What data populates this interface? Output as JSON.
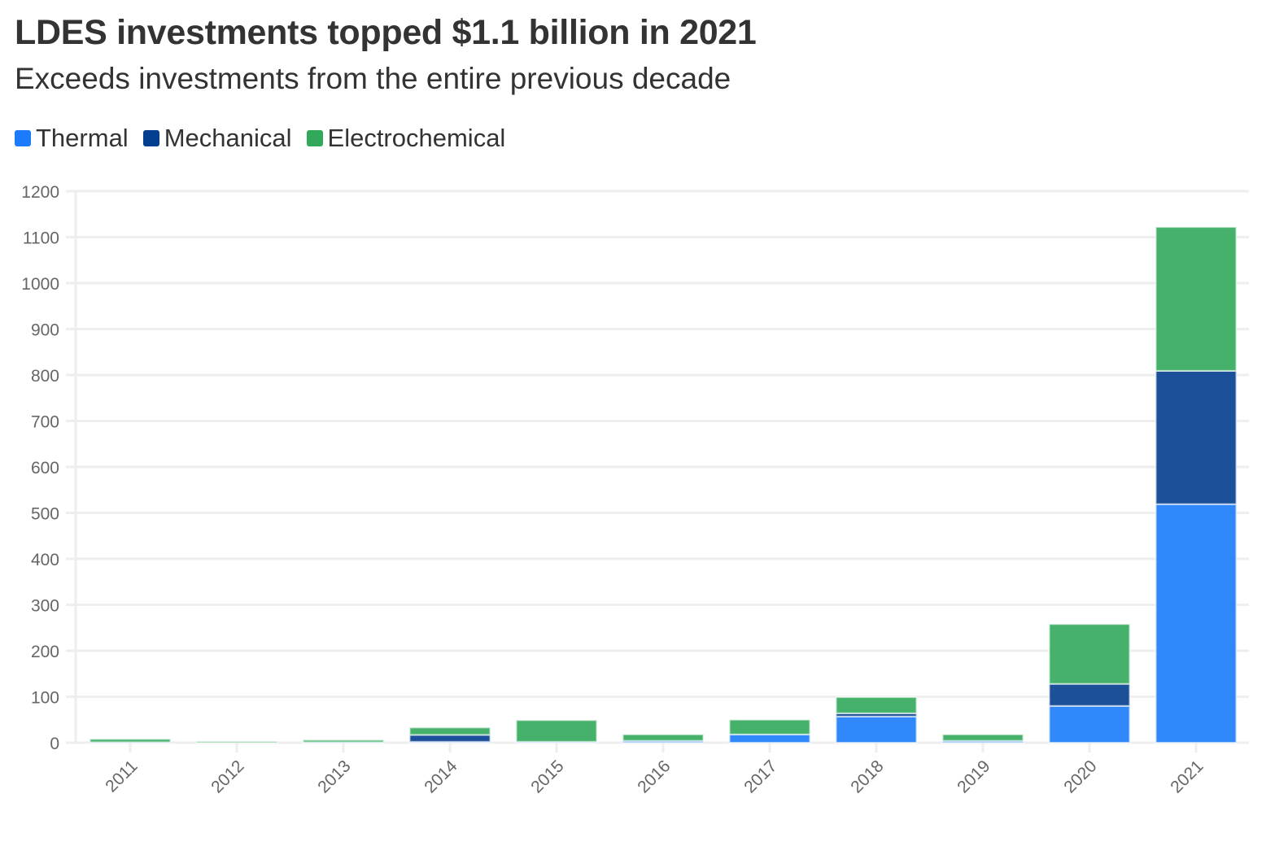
{
  "title": "LDES investments topped $1.1 billion in 2021",
  "subtitle": "Exceeds investments from the entire previous decade",
  "legend": [
    {
      "label": "Thermal",
      "color": "#1b7bfb"
    },
    {
      "label": "Mechanical",
      "color": "#033e8f"
    },
    {
      "label": "Electrochemical",
      "color": "#31a85a"
    }
  ],
  "chart_data": {
    "type": "bar",
    "stacked": true,
    "title": "LDES investments topped $1.1 billion in 2021",
    "subtitle": "Exceeds investments from the entire previous decade",
    "xlabel": "",
    "ylabel": "",
    "categories": [
      "2011",
      "2012",
      "2013",
      "2014",
      "2015",
      "2016",
      "2017",
      "2018",
      "2019",
      "2020",
      "2021"
    ],
    "series": [
      {
        "name": "Thermal",
        "color": "#1b7bfb",
        "values": [
          1,
          0,
          1,
          2,
          2,
          4,
          18,
          57,
          4,
          80,
          519
        ]
      },
      {
        "name": "Mechanical",
        "color": "#033e8f",
        "values": [
          0,
          0,
          0,
          15,
          0,
          0,
          0,
          7,
          0,
          48,
          290
        ]
      },
      {
        "name": "Electrochemical",
        "color": "#31a85a",
        "values": [
          7,
          1,
          5,
          16,
          47,
          14,
          32,
          35,
          14,
          130,
          313
        ]
      }
    ],
    "ylim": [
      0,
      1200
    ],
    "yticks": [
      0,
      100,
      200,
      300,
      400,
      500,
      600,
      700,
      800,
      900,
      1000,
      1100,
      1200
    ],
    "grid": true,
    "legend_position": "top-left"
  }
}
